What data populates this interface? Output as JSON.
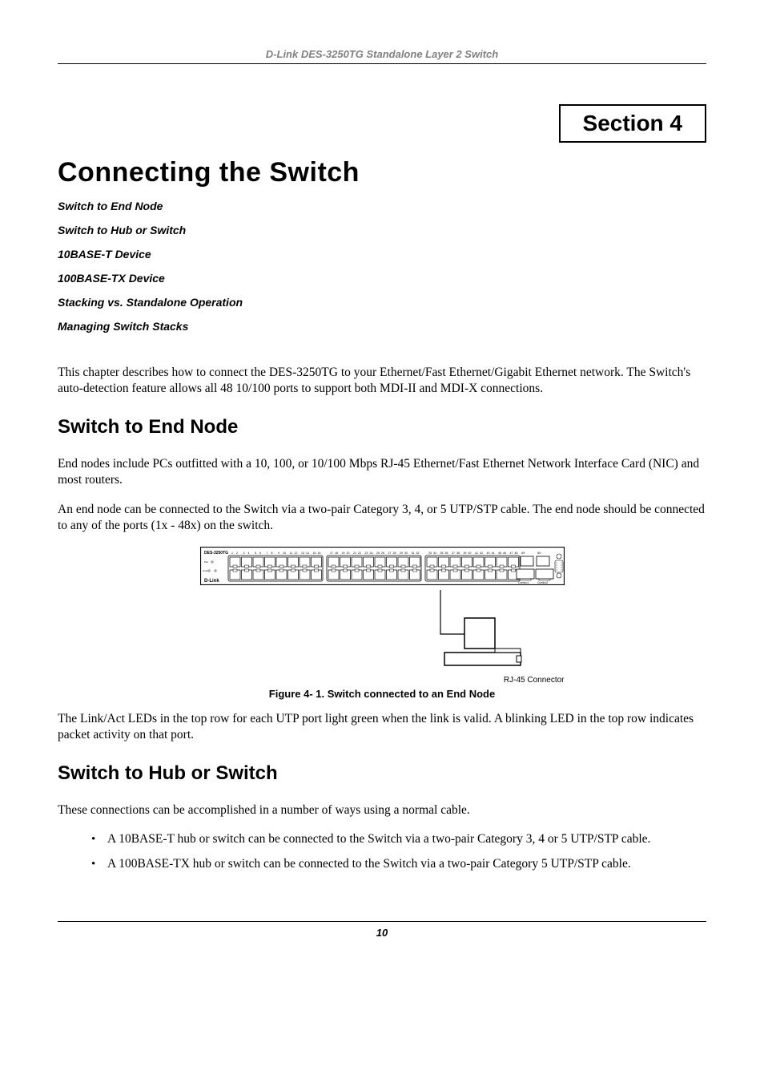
{
  "header": {
    "label": "D-Link DES-3250TG Standalone Layer 2 Switch"
  },
  "section_box": "Section 4",
  "chapter_title": "Connecting the Switch",
  "toc": [
    "Switch to End Node",
    "Switch to Hub or Switch",
    "10BASE-T Device",
    "100BASE-TX Device",
    "Stacking vs. Standalone Operation",
    "Managing Switch Stacks"
  ],
  "intro_paragraph": "This chapter describes how to connect the DES-3250TG to your Ethernet/Fast Ethernet/Gigabit Ethernet network. The Switch's auto-detection feature allows all 48 10/100 ports to support both MDI-II and MDI-X connections.",
  "section1": {
    "heading": "Switch to End Node",
    "p1": "End nodes include PCs outfitted with a 10, 100, or 10/100 Mbps RJ-45 Ethernet/Fast Ethernet Network Interface Card (NIC) and most routers.",
    "p2": "An end node can be connected to the Switch via a two-pair Category 3, 4, or 5 UTP/STP cable. The end node should be connected to any of the ports (1x - 48x) on the switch.",
    "figure": {
      "model_label": "DES-3250TG",
      "brand": "D-Link",
      "combo_labels": [
        "Combo1",
        "Combo2"
      ],
      "port_numbers_row1": [
        "1",
        "2",
        "3",
        "4",
        "5",
        "6",
        "7",
        "8",
        "9",
        "10",
        "11",
        "12",
        "13",
        "14",
        "15",
        "16"
      ],
      "port_numbers_row2": [
        "17",
        "18",
        "19",
        "20",
        "21",
        "22",
        "23",
        "24",
        "25",
        "26",
        "27",
        "28",
        "29",
        "30",
        "31",
        "32"
      ],
      "port_numbers_row3": [
        "33",
        "34",
        "35",
        "36",
        "37",
        "38",
        "39",
        "40",
        "41",
        "42",
        "43",
        "44",
        "45",
        "46",
        "47",
        "48"
      ],
      "extra_labels": [
        "49",
        "50"
      ],
      "connector_label": "RJ-45 Connector",
      "caption": "Figure 4- 1. Switch connected to an End Node",
      "colors": {
        "outline": "#000000",
        "port_fill": "#ffffff",
        "bg": "#ffffff"
      }
    },
    "p3": "The Link/Act LEDs in the top row for each UTP port light green when the link is valid. A blinking LED in the top row indicates packet activity on that port."
  },
  "section2": {
    "heading": "Switch to Hub or Switch",
    "p1": "These connections can be accomplished in a number of ways using a normal cable.",
    "bullets": [
      "A 10BASE-T hub or switch can be connected to the Switch via a two-pair Category 3, 4 or 5 UTP/STP cable.",
      "A 100BASE-TX hub or switch can be connected to the Switch via a two-pair Category 5 UTP/STP cable."
    ]
  },
  "page_number": "10"
}
